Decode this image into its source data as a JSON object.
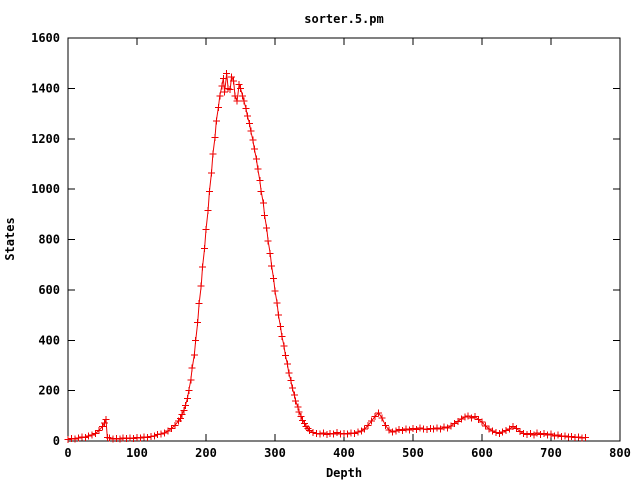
{
  "colors": {
    "background": "#ffffff",
    "frame": "#000000",
    "series": "#ee0000"
  },
  "chart_data": {
    "type": "line",
    "style": "linespoints",
    "marker": "plus",
    "title": "sorter.5.pm",
    "xlabel": "Depth",
    "ylabel": "States",
    "xlim": [
      0,
      800
    ],
    "ylim": [
      0,
      1600
    ],
    "x_ticks": [
      0,
      100,
      200,
      300,
      400,
      500,
      600,
      700,
      800
    ],
    "y_ticks": [
      0,
      200,
      400,
      600,
      800,
      1000,
      1200,
      1400,
      1600
    ],
    "grid": false,
    "legend": "none",
    "series": [
      {
        "name": "sorter.5.pm",
        "points": [
          [
            0,
            6
          ],
          [
            5,
            9
          ],
          [
            10,
            8
          ],
          [
            15,
            12
          ],
          [
            20,
            15
          ],
          [
            25,
            14
          ],
          [
            30,
            20
          ],
          [
            35,
            24
          ],
          [
            40,
            30
          ],
          [
            45,
            42
          ],
          [
            50,
            58
          ],
          [
            53,
            72
          ],
          [
            55,
            85
          ],
          [
            57,
            14
          ],
          [
            60,
            12
          ],
          [
            65,
            8
          ],
          [
            70,
            10
          ],
          [
            75,
            7
          ],
          [
            80,
            12
          ],
          [
            85,
            9
          ],
          [
            90,
            12
          ],
          [
            95,
            10
          ],
          [
            100,
            14
          ],
          [
            105,
            12
          ],
          [
            110,
            16
          ],
          [
            115,
            14
          ],
          [
            120,
            18
          ],
          [
            125,
            20
          ],
          [
            130,
            25
          ],
          [
            135,
            28
          ],
          [
            140,
            32
          ],
          [
            145,
            40
          ],
          [
            150,
            50
          ],
          [
            155,
            62
          ],
          [
            160,
            80
          ],
          [
            163,
            90
          ],
          [
            165,
            105
          ],
          [
            168,
            122
          ],
          [
            170,
            140
          ],
          [
            173,
            168
          ],
          [
            175,
            200
          ],
          [
            178,
            242
          ],
          [
            180,
            290
          ],
          [
            183,
            342
          ],
          [
            185,
            400
          ],
          [
            188,
            470
          ],
          [
            190,
            545
          ],
          [
            193,
            615
          ],
          [
            195,
            690
          ],
          [
            198,
            765
          ],
          [
            200,
            840
          ],
          [
            203,
            915
          ],
          [
            205,
            990
          ],
          [
            208,
            1065
          ],
          [
            210,
            1140
          ],
          [
            213,
            1205
          ],
          [
            215,
            1270
          ],
          [
            218,
            1325
          ],
          [
            220,
            1370
          ],
          [
            223,
            1410
          ],
          [
            225,
            1440
          ],
          [
            227,
            1385
          ],
          [
            230,
            1460
          ],
          [
            232,
            1400
          ],
          [
            235,
            1395
          ],
          [
            237,
            1445
          ],
          [
            240,
            1430
          ],
          [
            242,
            1370
          ],
          [
            245,
            1350
          ],
          [
            248,
            1415
          ],
          [
            250,
            1400
          ],
          [
            253,
            1370
          ],
          [
            255,
            1350
          ],
          [
            258,
            1320
          ],
          [
            260,
            1290
          ],
          [
            263,
            1260
          ],
          [
            265,
            1230
          ],
          [
            268,
            1195
          ],
          [
            270,
            1160
          ],
          [
            273,
            1120
          ],
          [
            275,
            1080
          ],
          [
            278,
            1035
          ],
          [
            280,
            990
          ],
          [
            283,
            945
          ],
          [
            285,
            895
          ],
          [
            288,
            845
          ],
          [
            290,
            795
          ],
          [
            293,
            745
          ],
          [
            295,
            695
          ],
          [
            298,
            645
          ],
          [
            300,
            595
          ],
          [
            303,
            548
          ],
          [
            305,
            500
          ],
          [
            308,
            455
          ],
          [
            310,
            415
          ],
          [
            313,
            378
          ],
          [
            315,
            340
          ],
          [
            318,
            305
          ],
          [
            320,
            270
          ],
          [
            323,
            240
          ],
          [
            325,
            210
          ],
          [
            328,
            183
          ],
          [
            330,
            158
          ],
          [
            333,
            135
          ],
          [
            335,
            115
          ],
          [
            338,
            98
          ],
          [
            340,
            82
          ],
          [
            343,
            70
          ],
          [
            345,
            58
          ],
          [
            348,
            50
          ],
          [
            350,
            42
          ],
          [
            355,
            34
          ],
          [
            360,
            30
          ],
          [
            365,
            27
          ],
          [
            370,
            31
          ],
          [
            375,
            26
          ],
          [
            380,
            30
          ],
          [
            385,
            28
          ],
          [
            390,
            33
          ],
          [
            395,
            27
          ],
          [
            400,
            30
          ],
          [
            405,
            28
          ],
          [
            410,
            32
          ],
          [
            415,
            30
          ],
          [
            420,
            35
          ],
          [
            425,
            40
          ],
          [
            430,
            48
          ],
          [
            435,
            62
          ],
          [
            440,
            80
          ],
          [
            445,
            98
          ],
          [
            450,
            112
          ],
          [
            455,
            92
          ],
          [
            460,
            62
          ],
          [
            465,
            44
          ],
          [
            470,
            36
          ],
          [
            475,
            40
          ],
          [
            480,
            46
          ],
          [
            485,
            42
          ],
          [
            490,
            48
          ],
          [
            495,
            44
          ],
          [
            500,
            50
          ],
          [
            505,
            46
          ],
          [
            510,
            52
          ],
          [
            515,
            48
          ],
          [
            520,
            45
          ],
          [
            525,
            50
          ],
          [
            530,
            47
          ],
          [
            535,
            52
          ],
          [
            540,
            48
          ],
          [
            545,
            55
          ],
          [
            550,
            52
          ],
          [
            555,
            60
          ],
          [
            560,
            70
          ],
          [
            565,
            78
          ],
          [
            570,
            88
          ],
          [
            575,
            95
          ],
          [
            580,
            100
          ],
          [
            585,
            92
          ],
          [
            590,
            97
          ],
          [
            595,
            85
          ],
          [
            600,
            75
          ],
          [
            605,
            60
          ],
          [
            610,
            48
          ],
          [
            615,
            40
          ],
          [
            620,
            34
          ],
          [
            625,
            30
          ],
          [
            630,
            35
          ],
          [
            635,
            42
          ],
          [
            640,
            48
          ],
          [
            645,
            58
          ],
          [
            650,
            50
          ],
          [
            655,
            38
          ],
          [
            660,
            30
          ],
          [
            665,
            26
          ],
          [
            670,
            30
          ],
          [
            675,
            24
          ],
          [
            680,
            32
          ],
          [
            685,
            26
          ],
          [
            690,
            30
          ],
          [
            695,
            24
          ],
          [
            700,
            27
          ],
          [
            705,
            20
          ],
          [
            710,
            23
          ],
          [
            715,
            18
          ],
          [
            720,
            20
          ],
          [
            725,
            15
          ],
          [
            730,
            18
          ],
          [
            735,
            14
          ],
          [
            740,
            16
          ],
          [
            745,
            12
          ],
          [
            750,
            14
          ]
        ]
      }
    ]
  }
}
